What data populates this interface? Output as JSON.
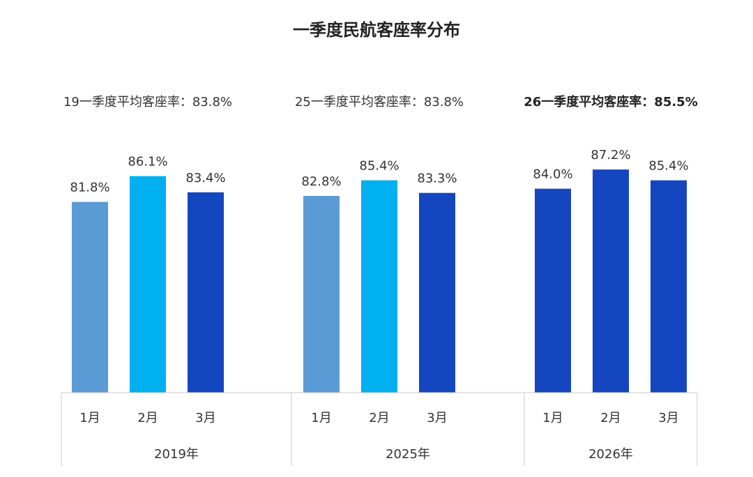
{
  "chart_data": {
    "type": "bar",
    "title": "一季度民航客座率分布",
    "ylim": [
      50,
      90
    ],
    "groups": [
      {
        "name": "2019年",
        "note": "19一季度平均客座率：83.8%",
        "bold": false,
        "categories": [
          "1月",
          "2月",
          "3月"
        ],
        "values": [
          81.8,
          86.1,
          83.4
        ],
        "value_labels": [
          "81.8%",
          "86.1%",
          "83.4%"
        ],
        "colors": [
          "#5b9bd5",
          "#00b0f0",
          "#1446c0"
        ]
      },
      {
        "name": "2025年",
        "note": "25一季度平均客座率：83.8%",
        "bold": false,
        "categories": [
          "1月",
          "2月",
          "3月"
        ],
        "values": [
          82.8,
          85.4,
          83.3
        ],
        "value_labels": [
          "82.8%",
          "85.4%",
          "83.3%"
        ],
        "colors": [
          "#5b9bd5",
          "#00b0f0",
          "#1446c0"
        ]
      },
      {
        "name": "2026年",
        "note": "26一季度平均客座率：85.5%",
        "bold": true,
        "categories": [
          "1月",
          "2月",
          "3月"
        ],
        "values": [
          84.0,
          87.2,
          85.4
        ],
        "value_labels": [
          "84.0%",
          "87.2%",
          "85.4%"
        ],
        "colors": [
          "#1446c0",
          "#1446c0",
          "#1446c0"
        ]
      }
    ]
  }
}
